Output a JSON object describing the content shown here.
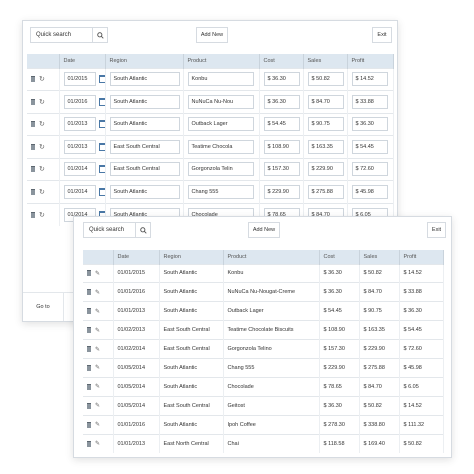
{
  "toolbar": {
    "search_label": "Quick search",
    "add_new_label": "Add New",
    "exit_label": "Exit"
  },
  "columns": [
    "Date",
    "Region",
    "Product",
    "Cost",
    "Sales",
    "Profit"
  ],
  "back_rows": [
    {
      "date": "01/2015",
      "region": "South Atlantic",
      "product": "Konbu",
      "cost": "$ 36.30",
      "sales": "$ 50.82",
      "profit": "$ 14.52"
    },
    {
      "date": "01/2016",
      "region": "South Atlantic",
      "product": "NuNuCa Nu-Nou",
      "cost": "$ 36.30",
      "sales": "$ 84.70",
      "profit": "$ 33.88"
    },
    {
      "date": "01/2013",
      "region": "South Atlantic",
      "product": "Outback Lager",
      "cost": "$ 54.45",
      "sales": "$ 90.75",
      "profit": "$ 36.30"
    },
    {
      "date": "01/2013",
      "region": "East South Central",
      "product": "Teatime Chocola",
      "cost": "$ 108.90",
      "sales": "$ 163.35",
      "profit": "$ 54.45"
    },
    {
      "date": "01/2014",
      "region": "East South Central",
      "product": "Gorgonzola Telin",
      "cost": "$ 157.30",
      "sales": "$ 229.90",
      "profit": "$ 72.60"
    },
    {
      "date": "01/2014",
      "region": "South Atlantic",
      "product": "Chang 555",
      "cost": "$ 229.90",
      "sales": "$ 275.88",
      "profit": "$ 45.98"
    },
    {
      "date": "01/2014",
      "region": "South Atlantic",
      "product": "Chocolade",
      "cost": "$ 78.65",
      "sales": "$ 84.70",
      "profit": "$ 6.05"
    }
  ],
  "back_footer": {
    "goto_label": "Go to"
  },
  "front_rows": [
    {
      "date": "01/01/2015",
      "region": "South Atlantic",
      "product": "Konbu",
      "cost": "$ 36.30",
      "sales": "$ 50.82",
      "profit": "$ 14.52"
    },
    {
      "date": "01/01/2016",
      "region": "South Atlantic",
      "product": "NuNuCa Nu-Nougat-Creme",
      "cost": "$ 36.30",
      "sales": "$ 84.70",
      "profit": "$ 33.88"
    },
    {
      "date": "01/01/2013",
      "region": "South Atlantic",
      "product": "Outback Lager",
      "cost": "$ 54.45",
      "sales": "$ 90.75",
      "profit": "$ 36.30"
    },
    {
      "date": "01/02/2013",
      "region": "East South Central",
      "product": "Teatime Chocolate Biscuits",
      "cost": "$ 108.90",
      "sales": "$ 163.35",
      "profit": "$ 54.45"
    },
    {
      "date": "01/02/2014",
      "region": "East South Central",
      "product": "Gorgonzola Telino",
      "cost": "$ 157.30",
      "sales": "$ 229.90",
      "profit": "$ 72.60"
    },
    {
      "date": "01/05/2014",
      "region": "South Atlantic",
      "product": "Chang 555",
      "cost": "$ 229.90",
      "sales": "$ 275.88",
      "profit": "$ 45.98"
    },
    {
      "date": "01/05/2014",
      "region": "South Atlantic",
      "product": "Chocolade",
      "cost": "$ 78.65",
      "sales": "$ 84.70",
      "profit": "$ 6.05"
    },
    {
      "date": "01/05/2014",
      "region": "East South Central",
      "product": "Geitost",
      "cost": "$ 36.30",
      "sales": "$ 50.82",
      "profit": "$ 14.52"
    },
    {
      "date": "01/01/2016",
      "region": "South Atlantic",
      "product": "Ipoh Coffee",
      "cost": "$ 278.30",
      "sales": "$ 338.80",
      "profit": "$ 111.32"
    },
    {
      "date": "01/01/2013",
      "region": "East North Central",
      "product": "Chai",
      "cost": "$ 118.58",
      "sales": "$ 169.40",
      "profit": "$ 50.82"
    }
  ],
  "icons": {
    "search": "search-icon",
    "delete": "trash-icon",
    "reset": "refresh-icon",
    "edit": "pencil-icon",
    "calendar": "calendar-icon"
  }
}
